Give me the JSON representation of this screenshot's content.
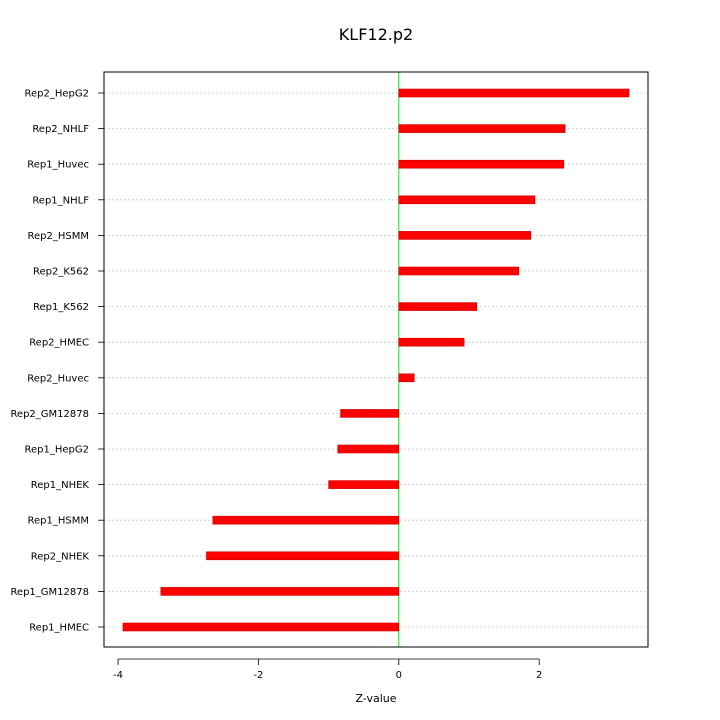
{
  "chart_data": {
    "type": "bar",
    "orientation": "horizontal",
    "title": "KLF12.p2",
    "xlabel": "Z-value",
    "ylabel": "",
    "xlim": [
      -4.2,
      3.55
    ],
    "xticks": [
      -4,
      -2,
      0,
      2
    ],
    "xtick_labels": [
      "-4",
      "-2",
      "0",
      "2"
    ],
    "zero_line": true,
    "grid": "horizontal-dotted",
    "categories": [
      "Rep2_HepG2",
      "Rep2_NHLF",
      "Rep1_Huvec",
      "Rep1_NHLF",
      "Rep2_HSMM",
      "Rep2_K562",
      "Rep1_K562",
      "Rep2_HMEC",
      "Rep2_Huvec",
      "Rep2_GM12878",
      "Rep1_HepG2",
      "Rep1_NHEK",
      "Rep1_HSMM",
      "Rep2_NHEK",
      "Rep1_GM12878",
      "Rep1_HMEC"
    ],
    "values": [
      3.28,
      2.37,
      2.35,
      1.94,
      1.88,
      1.71,
      1.11,
      0.93,
      0.22,
      -0.83,
      -0.87,
      -1.0,
      -2.65,
      -2.74,
      -3.39,
      -3.93
    ],
    "colors": {
      "bar": "#ff0000",
      "bar_edge": "#cc0000",
      "zero_line": "#00ee00",
      "grid": "#c8c8c8",
      "axis": "#000000"
    }
  }
}
